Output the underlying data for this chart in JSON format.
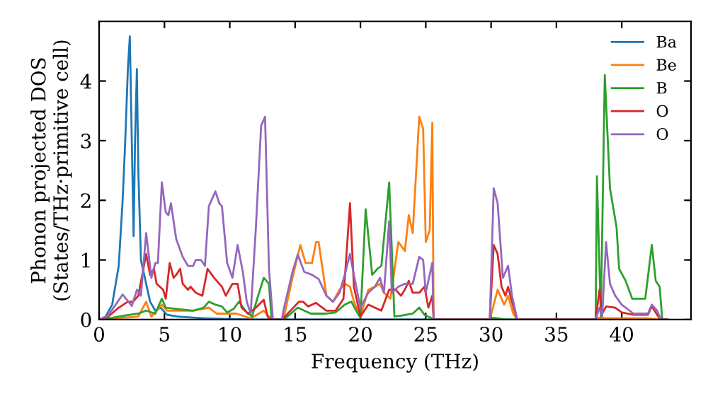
{
  "chart_data": {
    "type": "line",
    "xlabel": "Frequency (THz)",
    "ylabel": "Phonon projected DOS\n(States/THz·primitive cell)",
    "xlim": [
      0,
      45.3
    ],
    "ylim": [
      0,
      5
    ],
    "xticks": [
      0,
      5,
      10,
      15,
      20,
      25,
      30,
      35,
      40
    ],
    "yticks": [
      0,
      1,
      2,
      3,
      4
    ],
    "grid": false,
    "legend": "top right",
    "marker": "none",
    "line_style": "solid",
    "series": [
      {
        "name": "Ba",
        "color": "#1f77b4",
        "x": [
          0,
          0.5,
          1,
          1.5,
          1.8,
          2.0,
          2.2,
          2.35,
          2.5,
          2.64,
          2.75,
          2.89,
          3.0,
          3.2,
          3.6,
          3.9,
          4.3,
          4.7,
          5.2,
          6,
          8,
          10,
          12,
          43.5
        ],
        "values": [
          0,
          0.05,
          0.25,
          0.9,
          2,
          3,
          4.2,
          4.75,
          3,
          1.4,
          3,
          4.2,
          2.5,
          1.0,
          0.6,
          0.3,
          0.15,
          0.2,
          0.08,
          0.05,
          0.02,
          0.01,
          0,
          0
        ]
      },
      {
        "name": "Be",
        "color": "#ff7f0e",
        "x": [
          0,
          3,
          3.6,
          4.0,
          4.8,
          5.2,
          7.2,
          8.4,
          9.0,
          10.5,
          11.6,
          12.6,
          13.2,
          14.0,
          14.2,
          14.8,
          15.4,
          15.8,
          16.3,
          16.6,
          16.8,
          17.4,
          17.9,
          18.4,
          18.8,
          19.2,
          19.5,
          20.0,
          20.6,
          21.1,
          21.5,
          21.8,
          22.3,
          22.9,
          23.4,
          23.7,
          24.0,
          24.5,
          24.8,
          25.0,
          25.3,
          25.5,
          25.6,
          29.9,
          30.2,
          30.5,
          31.0,
          31.3,
          31.7,
          32.0,
          38.0,
          38.1,
          39,
          42,
          43,
          43.5
        ],
        "values": [
          0,
          0.05,
          0.3,
          0.05,
          0.25,
          0.15,
          0.15,
          0.2,
          0.1,
          0.1,
          0.02,
          0.15,
          0,
          0,
          0.1,
          0.7,
          1.25,
          0.95,
          0.95,
          1.3,
          1.3,
          0.4,
          0.3,
          0.5,
          0.6,
          0.55,
          0.3,
          0.05,
          0.5,
          0.55,
          0.6,
          0.45,
          0.35,
          1.3,
          1.15,
          1.75,
          1.45,
          3.4,
          3.2,
          1.3,
          1.5,
          3.3,
          0,
          0,
          0.25,
          0.5,
          0.25,
          0.4,
          0.1,
          0,
          0,
          0.03,
          0.02,
          0.02,
          0,
          0
        ]
      },
      {
        "name": "B",
        "color": "#2ca02c",
        "x": [
          0,
          1,
          2,
          3,
          3.6,
          4.3,
          4.8,
          5.1,
          5.8,
          7.2,
          8.0,
          8.4,
          8.9,
          9.4,
          9.8,
          10.3,
          10.7,
          11.3,
          11.7,
          12.1,
          12.6,
          13.0,
          13.2,
          14.0,
          14.3,
          15.2,
          15.7,
          16.2,
          17.4,
          18.1,
          18.8,
          19.3,
          19.8,
          20.0,
          20.4,
          20.9,
          21.3,
          21.6,
          22.2,
          22.6,
          23.2,
          24.0,
          24.5,
          24.9,
          25.4,
          25.6,
          29.9,
          30.0,
          30.5,
          31.0,
          38.0,
          38.1,
          38.4,
          38.7,
          39.1,
          39.6,
          39.8,
          40.3,
          40.8,
          41.8,
          42.3,
          42.6,
          42.9,
          43.1,
          43.5
        ],
        "values": [
          0,
          0.03,
          0.07,
          0.1,
          0.15,
          0.1,
          0.35,
          0.2,
          0.18,
          0.15,
          0.2,
          0.3,
          0.25,
          0.22,
          0.12,
          0.18,
          0.3,
          0.12,
          0.05,
          0.35,
          0.7,
          0.6,
          0,
          0,
          0.03,
          0.2,
          0.15,
          0.1,
          0.1,
          0.12,
          0.25,
          0.3,
          0.1,
          0.03,
          1.85,
          0.75,
          0.85,
          0.9,
          2.3,
          0.05,
          0.07,
          0.1,
          0.2,
          0.08,
          0.03,
          0,
          0,
          0.03,
          0.02,
          0,
          0,
          2.4,
          0.05,
          4.1,
          2.2,
          1.55,
          0.85,
          0.65,
          0.35,
          0.35,
          1.25,
          0.65,
          0.55,
          0,
          0
        ]
      },
      {
        "name": "O",
        "color": "#d62728",
        "x": [
          0,
          0.7,
          1.5,
          2.2,
          2.6,
          3.0,
          3.6,
          3.9,
          4.2,
          4.4,
          4.9,
          5.1,
          5.4,
          5.7,
          5.9,
          6.2,
          6.4,
          6.8,
          7.0,
          7.4,
          7.9,
          8.3,
          8.8,
          9.4,
          9.7,
          10.2,
          10.6,
          10.9,
          11.4,
          12.0,
          12.6,
          12.9,
          13.1,
          14.0,
          15.3,
          15.6,
          16.0,
          16.6,
          17.4,
          18.1,
          18.7,
          19.2,
          19.5,
          20.0,
          20.6,
          21.1,
          21.6,
          22.2,
          22.7,
          23.1,
          23.4,
          23.7,
          24.0,
          24.5,
          24.9,
          25.2,
          25.5,
          25.6,
          29.9,
          30.2,
          30.5,
          30.8,
          31.1,
          31.3,
          31.6,
          32.0,
          38.0,
          38.3,
          38.5,
          38.8,
          39.5,
          40.0,
          40.9,
          42.0,
          42.3,
          42.8,
          43.0,
          43.5
        ],
        "values": [
          0,
          0.05,
          0.2,
          0.3,
          0.3,
          0.4,
          1.1,
          0.75,
          0.85,
          0.6,
          0.5,
          0.35,
          0.95,
          0.7,
          0.75,
          0.85,
          0.6,
          0.5,
          0.55,
          0.45,
          0.4,
          0.85,
          0.7,
          0.55,
          0.4,
          0.6,
          0.6,
          0.2,
          0.1,
          0.2,
          0.33,
          0.05,
          0,
          0,
          0.3,
          0.3,
          0.22,
          0.28,
          0.15,
          0.15,
          0.35,
          1.95,
          0.55,
          0.05,
          0.25,
          0.2,
          0.15,
          0.5,
          0.5,
          0.4,
          0.5,
          0.65,
          0.45,
          0.45,
          0.55,
          0.2,
          0.4,
          0,
          0,
          1.25,
          1.1,
          0.55,
          0.4,
          0.55,
          0.3,
          0,
          0,
          0.5,
          0.1,
          0.22,
          0.2,
          0.12,
          0.08,
          0.08,
          0.22,
          0.05,
          0,
          0
        ]
      },
      {
        "name": "O",
        "color": "#9467bd",
        "x": [
          0,
          0.7,
          1.8,
          2.5,
          2.9,
          3.2,
          3.6,
          4.0,
          4.3,
          4.5,
          4.8,
          5.1,
          5.3,
          5.5,
          5.9,
          6.4,
          6.8,
          7.2,
          7.4,
          7.8,
          8.1,
          8.4,
          8.9,
          9.2,
          9.4,
          9.8,
          10.2,
          10.6,
          11.0,
          11.3,
          11.6,
          12.0,
          12.4,
          12.7,
          13.0,
          13.3,
          14.0,
          14.1,
          14.8,
          15.2,
          15.7,
          16.3,
          16.8,
          17.4,
          17.9,
          18.4,
          18.8,
          19.2,
          19.5,
          20.0,
          20.6,
          21.1,
          21.5,
          21.8,
          22.2,
          22.4,
          22.9,
          23.4,
          24.0,
          24.5,
          24.8,
          25.0,
          25.5,
          25.6,
          29.9,
          30.2,
          30.5,
          30.9,
          31.3,
          31.6,
          32.0,
          38.0,
          38.3,
          38.5,
          38.8,
          39.1,
          39.5,
          40.0,
          40.9,
          42.0,
          42.3,
          42.7,
          43.0,
          43.5
        ],
        "values": [
          0,
          0.07,
          0.42,
          0.23,
          0.5,
          0.4,
          1.45,
          0.7,
          0.95,
          0.95,
          2.3,
          1.8,
          1.75,
          1.95,
          1.35,
          1.05,
          0.9,
          0.9,
          1.0,
          1.0,
          0.9,
          1.9,
          2.15,
          1.95,
          1.9,
          0.95,
          0.7,
          1.25,
          0.8,
          0.3,
          0.1,
          1.55,
          3.25,
          3.4,
          0.85,
          0,
          0,
          0.15,
          0.8,
          1.09,
          0.8,
          0.75,
          0.68,
          0.4,
          0.3,
          0.45,
          0.75,
          1.1,
          0.75,
          0.2,
          0.45,
          0.55,
          0.7,
          0.45,
          1.65,
          0.45,
          0.55,
          0.6,
          0.6,
          1.05,
          1.0,
          0.45,
          0.95,
          0,
          0,
          2.2,
          1.95,
          0.7,
          0.9,
          0.4,
          0,
          0,
          0.2,
          0.05,
          1.3,
          0.6,
          0.4,
          0.25,
          0.1,
          0.1,
          0.25,
          0.15,
          0,
          0
        ]
      }
    ]
  }
}
